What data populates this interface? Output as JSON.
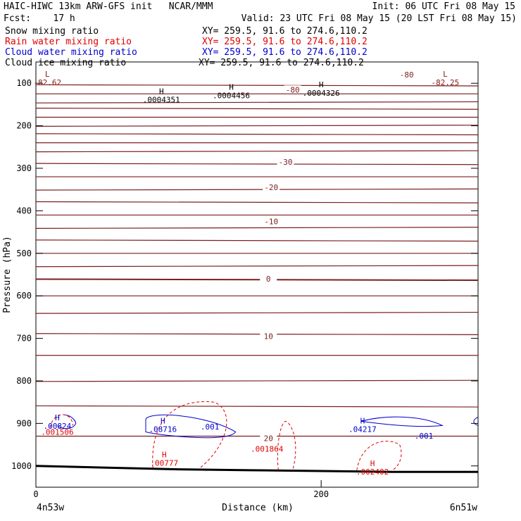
{
  "header": {
    "title": "HAIC-HIWC 13km ARW-GFS init   NCAR/MMM",
    "init": "Init: 06 UTC Fri 08 May 15",
    "fcst": "Fcst:    17 h",
    "valid": "Valid: 23 UTC Fri 08 May 15 (20 LST Fri 08 May 15)",
    "fields": [
      {
        "name": "Snow mixing ratio",
        "xy": "XY= 259.5, 91.6 to 274.6,110.2",
        "color": "#000000"
      },
      {
        "name": "Rain water mixing ratio",
        "xy": "XY= 259.5, 91.6 to 274.6,110.2",
        "color": "#e00000"
      },
      {
        "name": "Cloud water mixing ratio",
        "xy": "XY= 259.5, 91.6 to 274.6,110.2",
        "color": "#0000cc"
      },
      {
        "name": "Cloud ice mixing ratio",
        "xy": "XY= 259.5, 91.6 to 274.6,110.2",
        "color": "#000000"
      }
    ]
  },
  "chart_data": {
    "type": "line",
    "xlabel": "Distance (km)",
    "ylabel": "Pressure (hPa)",
    "xlim": [
      0,
      310
    ],
    "ylim": [
      1050,
      50
    ],
    "x_ticks": [
      0,
      200
    ],
    "y_ticks": [
      100,
      200,
      300,
      400,
      500,
      600,
      700,
      800,
      900,
      1000
    ],
    "x_endpoint_labels": [
      "4n53w",
      "6n51w"
    ],
    "temperature_contours": [
      {
        "label": "-80",
        "pressure": 80,
        "x": 260
      },
      {
        "label": "-80",
        "pressure": 115,
        "x": 180
      },
      {
        "label": "-30",
        "pressure": 285,
        "x": 175
      },
      {
        "label": "-20",
        "pressure": 345,
        "x": 165
      },
      {
        "label": "-10",
        "pressure": 425,
        "x": 165
      },
      {
        "label": "0",
        "pressure": 560,
        "x": 163
      },
      {
        "label": "10",
        "pressure": 695,
        "x": 163
      },
      {
        "label": "20",
        "pressure": 935,
        "x": 163
      }
    ],
    "extrema": [
      {
        "symbol": "L",
        "value": "-82.62",
        "x": 8,
        "pressure": 85,
        "color": "#8b1a1a"
      },
      {
        "symbol": "L",
        "value": "-82.25",
        "x": 287,
        "pressure": 85,
        "color": "#8b1a1a"
      },
      {
        "symbol": "H",
        "value": ".0004351",
        "x": 88,
        "pressure": 125,
        "color": "#000000"
      },
      {
        "symbol": "H",
        "value": ".0004456",
        "x": 137,
        "pressure": 115,
        "color": "#000000"
      },
      {
        "symbol": "H",
        "value": ".0004326",
        "x": 200,
        "pressure": 110,
        "color": "#000000"
      },
      {
        "symbol": "H",
        "value": ".00824",
        "x": 15,
        "pressure": 893,
        "color": "#0000cc"
      },
      {
        "symbol": "H",
        "value": ".08716",
        "x": 89,
        "pressure": 900,
        "color": "#0000cc"
      },
      {
        "symbol": "H",
        "value": ".04217",
        "x": 229,
        "pressure": 900,
        "color": "#0000cc"
      },
      {
        "symbol": "H",
        "value": ".00777",
        "x": 90,
        "pressure": 980,
        "color": "#e00000"
      },
      {
        "symbol": "H",
        "value": ".002402",
        "x": 236,
        "pressure": 1000,
        "color": "#e00000"
      }
    ],
    "contour_labels": [
      {
        "text": ".001506",
        "x": 15,
        "pressure": 920,
        "color": "#e00000"
      },
      {
        "text": ".001",
        "x": 122,
        "pressure": 908,
        "color": "#0000cc"
      },
      {
        "text": ".001",
        "x": 272,
        "pressure": 929,
        "color": "#0000cc"
      },
      {
        "text": ".001864",
        "x": 162,
        "pressure": 960,
        "color": "#e00000"
      }
    ],
    "series": [
      {
        "name": "Snow mixing ratio",
        "color": "#000000"
      },
      {
        "name": "Rain water mixing ratio",
        "color": "#e00000"
      },
      {
        "name": "Cloud water mixing ratio",
        "color": "#0000cc"
      },
      {
        "name": "Cloud ice mixing ratio",
        "color": "#000000"
      }
    ]
  }
}
